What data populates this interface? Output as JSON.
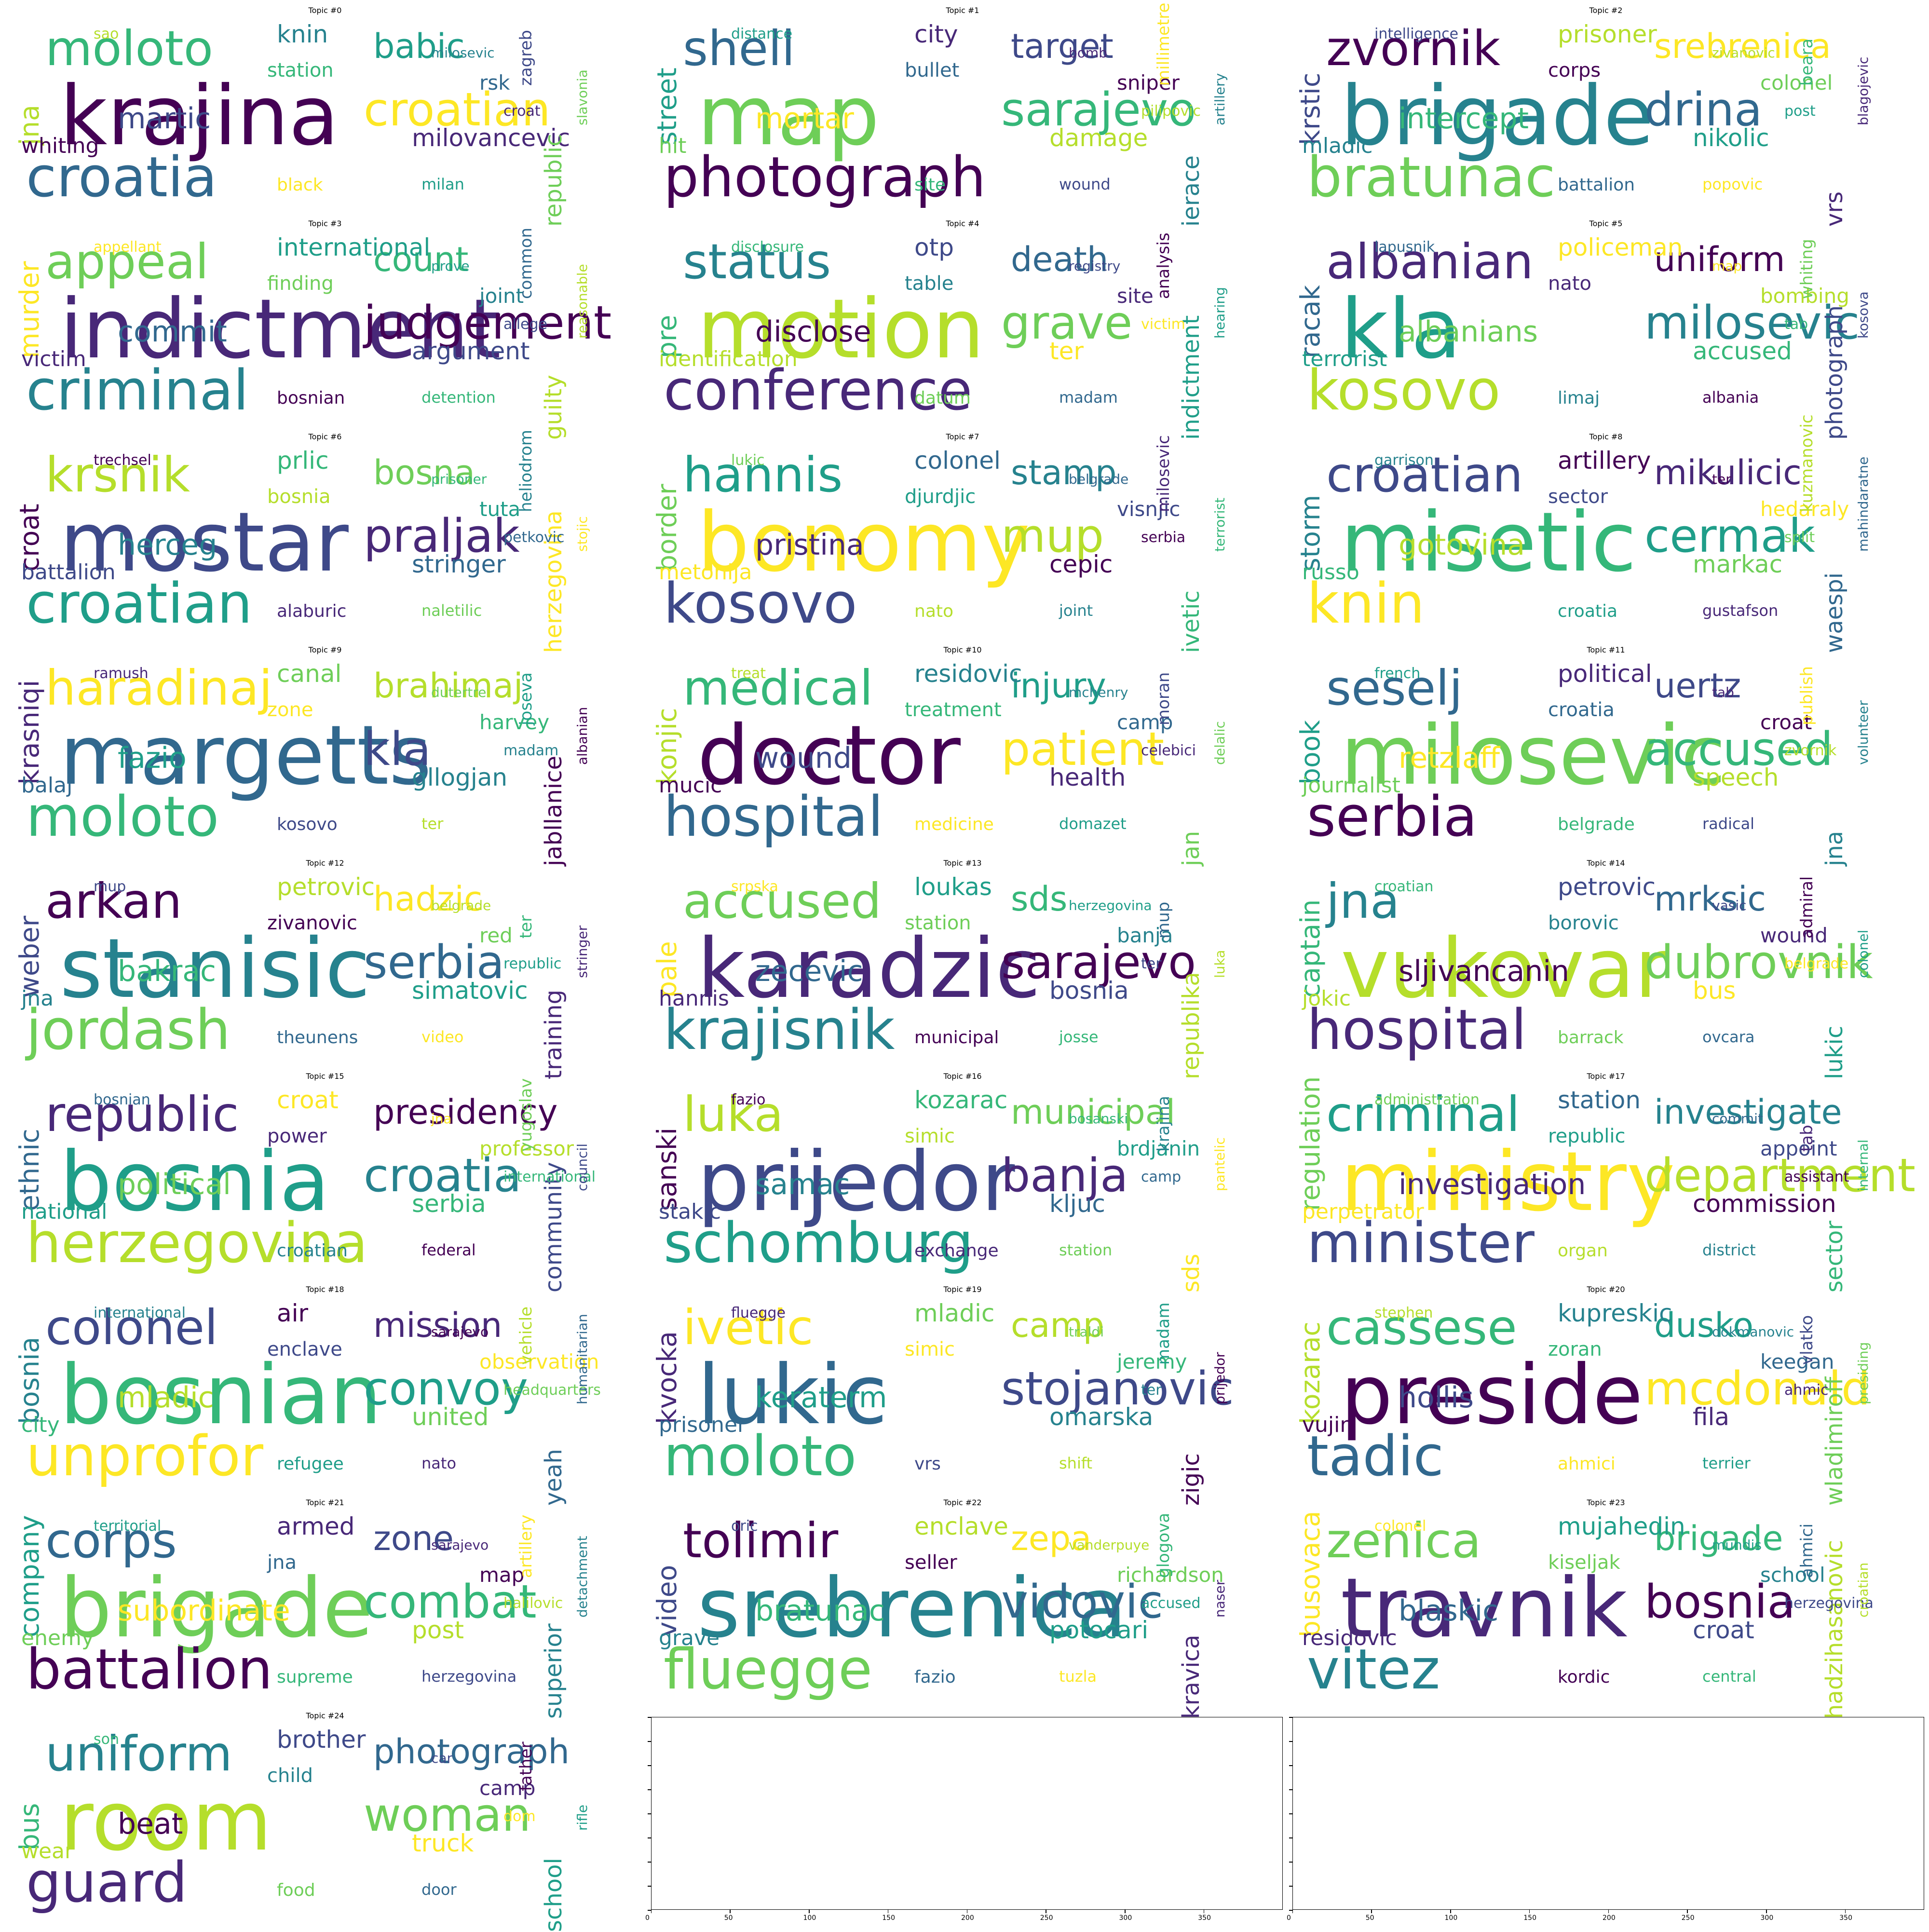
{
  "chart_data": {
    "type": "wordcloud-grid",
    "topics": [
      {
        "title": "Topic #0",
        "words": [
          "krajina",
          "croatia",
          "moloto",
          "croatian",
          "martic",
          "babic",
          "jna",
          "milovancevic",
          "knin",
          "republic",
          "whiting",
          "rsk",
          "station",
          "black",
          "zagreb",
          "milan",
          "sao",
          "croat",
          "milosevic",
          "slavonia"
        ]
      },
      {
        "title": "Topic #1",
        "words": [
          "map",
          "photograph",
          "shell",
          "sarajevo",
          "mortar",
          "target",
          "street",
          "damage",
          "city",
          "ierace",
          "hit",
          "sniper",
          "bullet",
          "site",
          "millimetre",
          "wound",
          "distance",
          "pilipovic",
          "bomb",
          "artillery"
        ]
      },
      {
        "title": "Topic #2",
        "words": [
          "brigade",
          "bratunac",
          "zvornik",
          "drina",
          "intercept",
          "srebrenica",
          "krstic",
          "nikolic",
          "prisoner",
          "vrs",
          "mladic",
          "colonel",
          "corps",
          "battalion",
          "beara",
          "popovic",
          "intelligence",
          "post",
          "zivanovic",
          "blagojevic"
        ]
      },
      {
        "title": "Topic #3",
        "words": [
          "indictment",
          "criminal",
          "appeal",
          "judgement",
          "commit",
          "count",
          "murder",
          "argument",
          "international",
          "guilty",
          "victim",
          "joint",
          "finding",
          "bosnian",
          "common",
          "detention",
          "appellant",
          "allege",
          "prove",
          "reasonable"
        ]
      },
      {
        "title": "Topic #4",
        "words": [
          "motion",
          "conference",
          "status",
          "grave",
          "disclose",
          "death",
          "pre",
          "ter",
          "otp",
          "indictment",
          "identification",
          "site",
          "table",
          "datum",
          "analysis",
          "madam",
          "disclosure",
          "victim",
          "registry",
          "hearing"
        ]
      },
      {
        "title": "Topic #5",
        "words": [
          "kla",
          "kosovo",
          "albanian",
          "milosevic",
          "albanians",
          "uniform",
          "racak",
          "accused",
          "policeman",
          "photograph",
          "terrorist",
          "bombing",
          "nato",
          "limaj",
          "whiting",
          "albania",
          "lapusnik",
          "tab",
          "map",
          "kosova"
        ]
      },
      {
        "title": "Topic #6",
        "words": [
          "mostar",
          "croatian",
          "krsnik",
          "praljak",
          "herceg",
          "bosna",
          "croat",
          "stringer",
          "prlic",
          "herzegovina",
          "battalion",
          "tuta",
          "bosnia",
          "alaburic",
          "heliodrom",
          "naletilic",
          "trechsel",
          "petkovic",
          "prisoner",
          "stojic"
        ]
      },
      {
        "title": "Topic #7",
        "words": [
          "bonomy",
          "kosovo",
          "hannis",
          "mup",
          "pristina",
          "stamp",
          "border",
          "cepic",
          "colonel",
          "ivetic",
          "metohija",
          "visnjic",
          "djurdjic",
          "nato",
          "milosevic",
          "joint",
          "lukic",
          "serbia",
          "belgrade",
          "terrorist"
        ]
      },
      {
        "title": "Topic #8",
        "words": [
          "misetic",
          "knin",
          "croatian",
          "cermak",
          "gotovina",
          "mikulicic",
          "storm",
          "markac",
          "artillery",
          "waespi",
          "russo",
          "hedaraly",
          "sector",
          "croatia",
          "kuzmanovic",
          "gustafson",
          "garrison",
          "split",
          "ter",
          "mahindaratne"
        ]
      },
      {
        "title": "Topic #9",
        "words": [
          "margetts",
          "moloto",
          "haradinaj",
          "kla",
          "fazio",
          "brahimaj",
          "krasniqi",
          "gllogjan",
          "canal",
          "jabllanice",
          "balaj",
          "harvey",
          "zone",
          "kosovo",
          "joseva",
          "ter",
          "ramush",
          "madam",
          "dutertre",
          "albanian"
        ]
      },
      {
        "title": "Topic #10",
        "words": [
          "doctor",
          "hospital",
          "medical",
          "patient",
          "wound",
          "injury",
          "konjic",
          "health",
          "residovic",
          "jan",
          "mucic",
          "camp",
          "treatment",
          "medicine",
          "moran",
          "domazet",
          "treat",
          "celebici",
          "mchenry",
          "delalic"
        ]
      },
      {
        "title": "Topic #11",
        "words": [
          "milosevic",
          "serbia",
          "seselj",
          "accused",
          "retzlaff",
          "uertz",
          "book",
          "speech",
          "political",
          "jna",
          "journalist",
          "croat",
          "croatia",
          "belgrade",
          "publish",
          "radical",
          "french",
          "zvornik",
          "tab",
          "volunteer"
        ]
      },
      {
        "title": "Topic #12",
        "words": [
          "stanisic",
          "jordash",
          "arkan",
          "serbia",
          "bakrac",
          "hadzic",
          "weber",
          "simatovic",
          "petrovic",
          "training",
          "jna",
          "red",
          "zivanovic",
          "theunens",
          "ter",
          "video",
          "mup",
          "republic",
          "belgrade",
          "stringer"
        ]
      },
      {
        "title": "Topic #13",
        "words": [
          "karadzic",
          "krajisnik",
          "accused",
          "sarajevo",
          "zecevic",
          "sds",
          "pale",
          "bosnia",
          "loukas",
          "republika",
          "hannis",
          "banja",
          "station",
          "municipal",
          "mup",
          "josse",
          "srpska",
          "ter",
          "herzegovina",
          "luka"
        ]
      },
      {
        "title": "Topic #14",
        "words": [
          "vukovar",
          "hospital",
          "jna",
          "dubrovnik",
          "sljivancanin",
          "mrksic",
          "captain",
          "bus",
          "petrovic",
          "lukic",
          "jokic",
          "wound",
          "borovic",
          "barrack",
          "admiral",
          "ovcara",
          "croatian",
          "belgrade",
          "vasic",
          "colonel"
        ]
      },
      {
        "title": "Topic #15",
        "words": [
          "bosnia",
          "herzegovina",
          "republic",
          "croatia",
          "political",
          "presidency",
          "ethnic",
          "serbia",
          "croat",
          "community",
          "national",
          "professor",
          "power",
          "croatian",
          "yugoslav",
          "federal",
          "bosnian",
          "international",
          "jna",
          "council"
        ]
      },
      {
        "title": "Topic #16",
        "words": [
          "prijedor",
          "schomburg",
          "luka",
          "banja",
          "samac",
          "municipal",
          "sanski",
          "kljuc",
          "kozarac",
          "sds",
          "stakic",
          "brdjanin",
          "simic",
          "exchange",
          "krajina",
          "station",
          "fazio",
          "camp",
          "bosanski",
          "pantelic"
        ]
      },
      {
        "title": "Topic #17",
        "words": [
          "ministry",
          "minister",
          "criminal",
          "department",
          "investigation",
          "investigate",
          "regulation",
          "commission",
          "station",
          "sector",
          "perpetrator",
          "appoint",
          "republic",
          "organ",
          "tab",
          "district",
          "administration",
          "assistant",
          "commit",
          "internal"
        ]
      },
      {
        "title": "Topic #18",
        "words": [
          "bosnian",
          "unprofor",
          "colonel",
          "convoy",
          "mladic",
          "mission",
          "bosnia",
          "united",
          "air",
          "yeah",
          "city",
          "observation",
          "enclave",
          "refugee",
          "vehicle",
          "nato",
          "international",
          "headquarters",
          "sarajevo",
          "humanitarian"
        ]
      },
      {
        "title": "Topic #19",
        "words": [
          "lukic",
          "moloto",
          "ivetic",
          "stojanovic",
          "keraterm",
          "camp",
          "kvocka",
          "omarska",
          "mladic",
          "zigic",
          "prisoner",
          "jeremy",
          "simic",
          "vrs",
          "madam",
          "shift",
          "fluegge",
          "ter",
          "traldi",
          "prijedor"
        ]
      },
      {
        "title": "Topic #20",
        "words": [
          "preside",
          "tadic",
          "cassese",
          "mcdonald",
          "hollis",
          "dusko",
          "kozarac",
          "fila",
          "kupreskic",
          "wladimiroff",
          "vujin",
          "keegan",
          "zoran",
          "ahmici",
          "vlatko",
          "terrier",
          "stephen",
          "ahmic",
          "dokmanovic",
          "presiding"
        ]
      },
      {
        "title": "Topic #21",
        "words": [
          "brigade",
          "battalion",
          "corps",
          "combat",
          "subordinate",
          "zone",
          "company",
          "post",
          "armed",
          "superior",
          "enemy",
          "map",
          "jna",
          "supreme",
          "artillery",
          "herzegovina",
          "territorial",
          "halilovic",
          "sarajevo",
          "detachment"
        ]
      },
      {
        "title": "Topic #22",
        "words": [
          "srebrenica",
          "fluegge",
          "tolimir",
          "vidovic",
          "bratunac",
          "zepa",
          "video",
          "potocari",
          "enclave",
          "kravica",
          "grave",
          "richardson",
          "seller",
          "fazio",
          "glogova",
          "tuzla",
          "oric",
          "accused",
          "vanderpuye",
          "naser"
        ]
      },
      {
        "title": "Topic #23",
        "words": [
          "travnik",
          "vitez",
          "zenica",
          "bosnia",
          "blaskic",
          "brigade",
          "busovaca",
          "croat",
          "mujahedin",
          "hadzihasanovic",
          "residovic",
          "school",
          "kiseljak",
          "kordic",
          "ahmici",
          "central",
          "colonel",
          "herzegovina",
          "mundis",
          "croatian"
        ]
      },
      {
        "title": "Topic #24",
        "words": [
          "room",
          "guard",
          "uniform",
          "woman",
          "beat",
          "photograph",
          "bus",
          "truck",
          "brother",
          "school",
          "wear",
          "camp",
          "child",
          "food",
          "father",
          "door",
          "son",
          "dom",
          "car",
          "rifle"
        ]
      }
    ],
    "empty_axes": [
      {
        "xlim": [
          0,
          400
        ],
        "xticks": [
          "0",
          "50",
          "100",
          "150",
          "200",
          "250",
          "300",
          "350"
        ]
      },
      {
        "xlim": [
          0,
          400
        ],
        "xticks": [
          "0",
          "50",
          "100",
          "150",
          "200",
          "250",
          "300",
          "350"
        ]
      }
    ]
  }
}
